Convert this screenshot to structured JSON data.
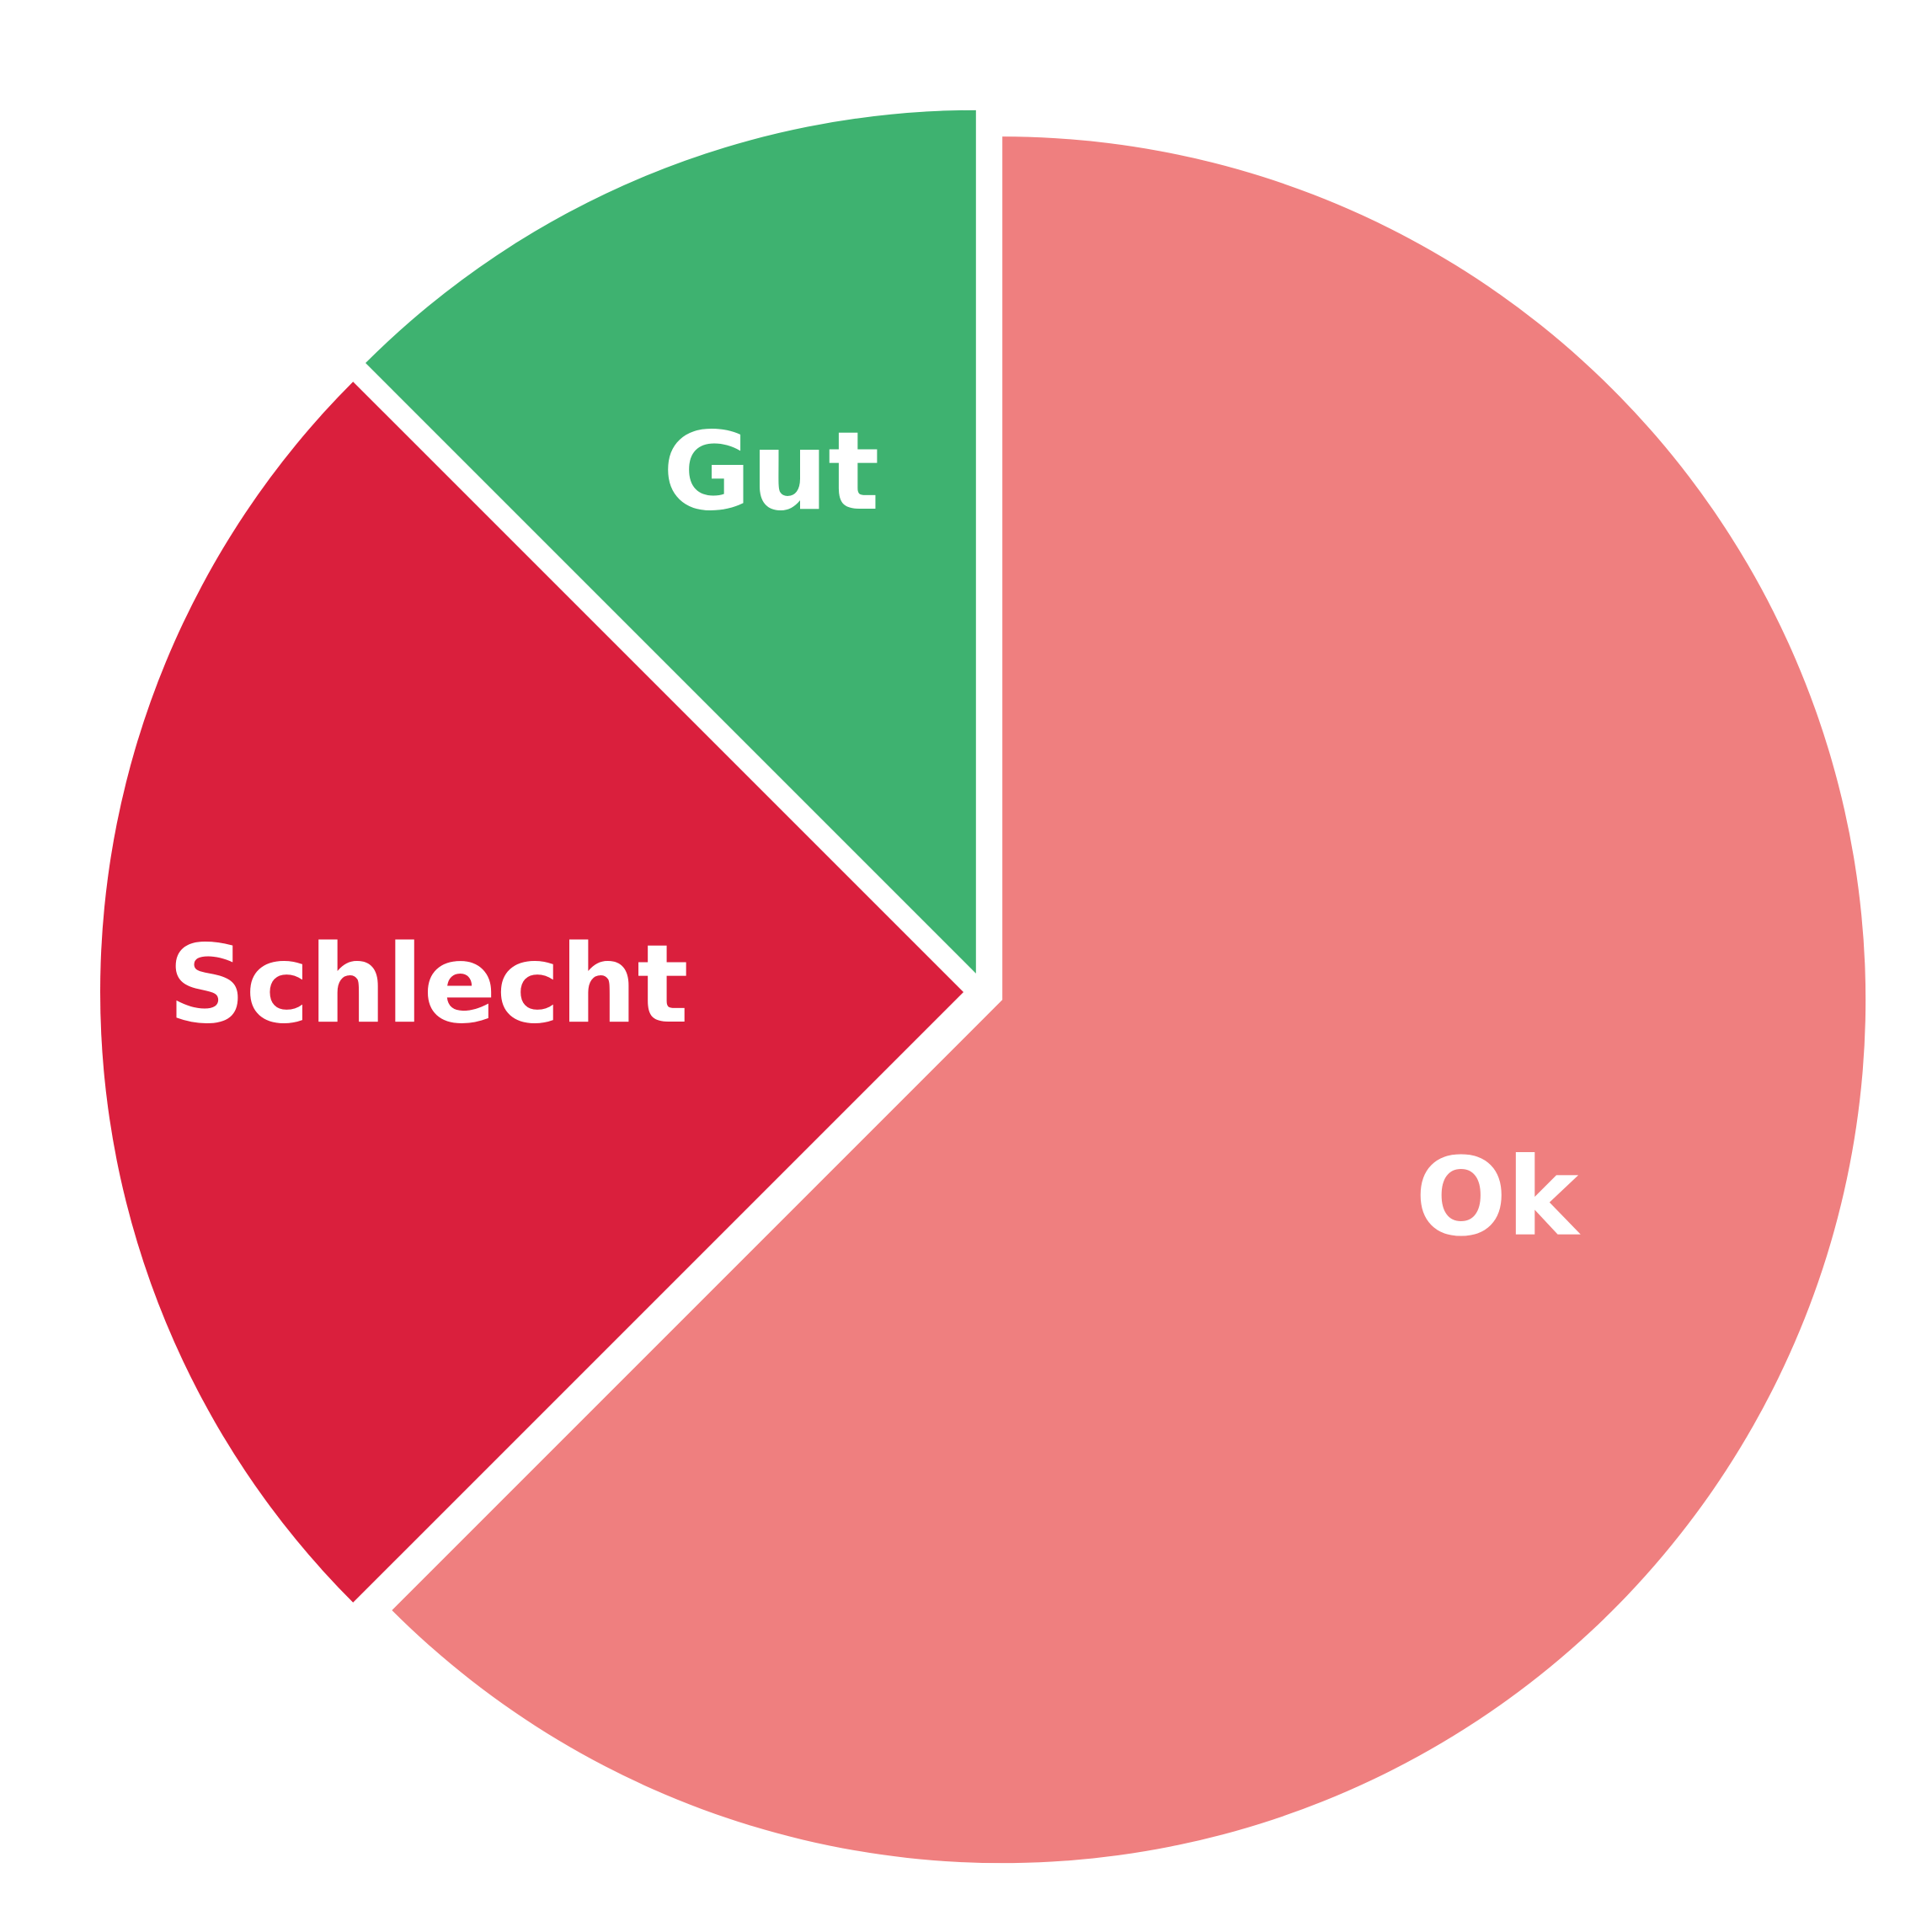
{
  "chart_data": {
    "type": "pie",
    "title": "",
    "slices": [
      {
        "label": "Ok",
        "value": 62.5,
        "color": "#EF7F7F"
      },
      {
        "label": "Schlecht",
        "value": 25,
        "color": "#DA1F3D"
      },
      {
        "label": "Gut",
        "value": 12.5,
        "color": "#3EB270"
      }
    ],
    "start_angle_deg": 0,
    "direction": "clockwise",
    "exploded": true
  }
}
